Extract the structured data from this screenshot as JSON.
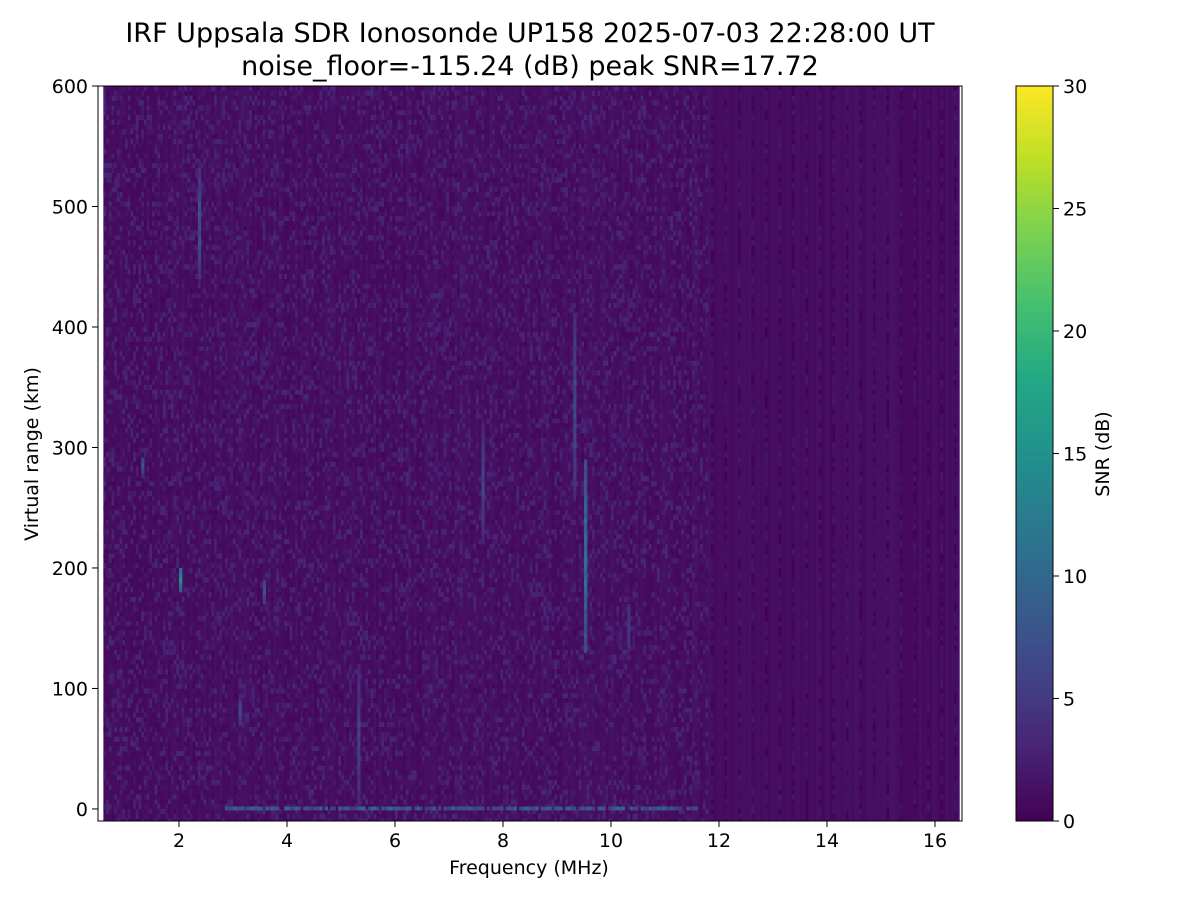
{
  "chart_data": {
    "type": "heatmap",
    "title": "IRF Uppsala SDR Ionosonde UP158 2025-07-03 22:28:00  UT",
    "subtitle": "noise_floor=-115.24 (dB) peak SNR=17.72",
    "xlabel": "Frequency (MHz)",
    "ylabel": "Virtual range (km)",
    "xlim": [
      0.5,
      16.5
    ],
    "ylim": [
      -10,
      600
    ],
    "x_ticks": [
      2,
      4,
      6,
      8,
      10,
      12,
      14,
      16
    ],
    "y_ticks": [
      0,
      100,
      200,
      300,
      400,
      500,
      600
    ],
    "colorbar": {
      "label": "SNR (dB)",
      "range": [
        0,
        30
      ],
      "ticks": [
        0,
        5,
        10,
        15,
        20,
        25,
        30
      ],
      "colormap": "viridis"
    },
    "grid": false,
    "features": [
      {
        "freq_mhz": 9.5,
        "range_km": [
          130,
          290
        ],
        "snr_db": 12
      },
      {
        "freq_mhz": 9.3,
        "range_km": [
          260,
          410
        ],
        "snr_db": 7
      },
      {
        "freq_mhz": 2.0,
        "range_km": [
          180,
          200
        ],
        "snr_db": 15
      },
      {
        "freq_mhz": 2.35,
        "range_km": [
          440,
          530
        ],
        "snr_db": 8
      },
      {
        "freq_mhz": 3.55,
        "range_km": [
          170,
          190
        ],
        "snr_db": 9
      },
      {
        "freq_mhz": 1.3,
        "range_km": [
          275,
          290
        ],
        "snr_db": 8
      },
      {
        "freq_mhz": 10.3,
        "range_km": [
          130,
          170
        ],
        "snr_db": 6
      },
      {
        "freq_mhz": 5.3,
        "range_km": [
          0,
          120
        ],
        "snr_db": 6
      },
      {
        "freq_mhz": 3.1,
        "range_km": [
          70,
          90
        ],
        "snr_db": 8
      },
      {
        "freq_mhz": 7.6,
        "range_km": [
          220,
          320
        ],
        "snr_db": 6
      }
    ],
    "ground_echo": {
      "range_km": 0,
      "freq_mhz": [
        2.8,
        11.6
      ],
      "snr_db": 10
    }
  }
}
